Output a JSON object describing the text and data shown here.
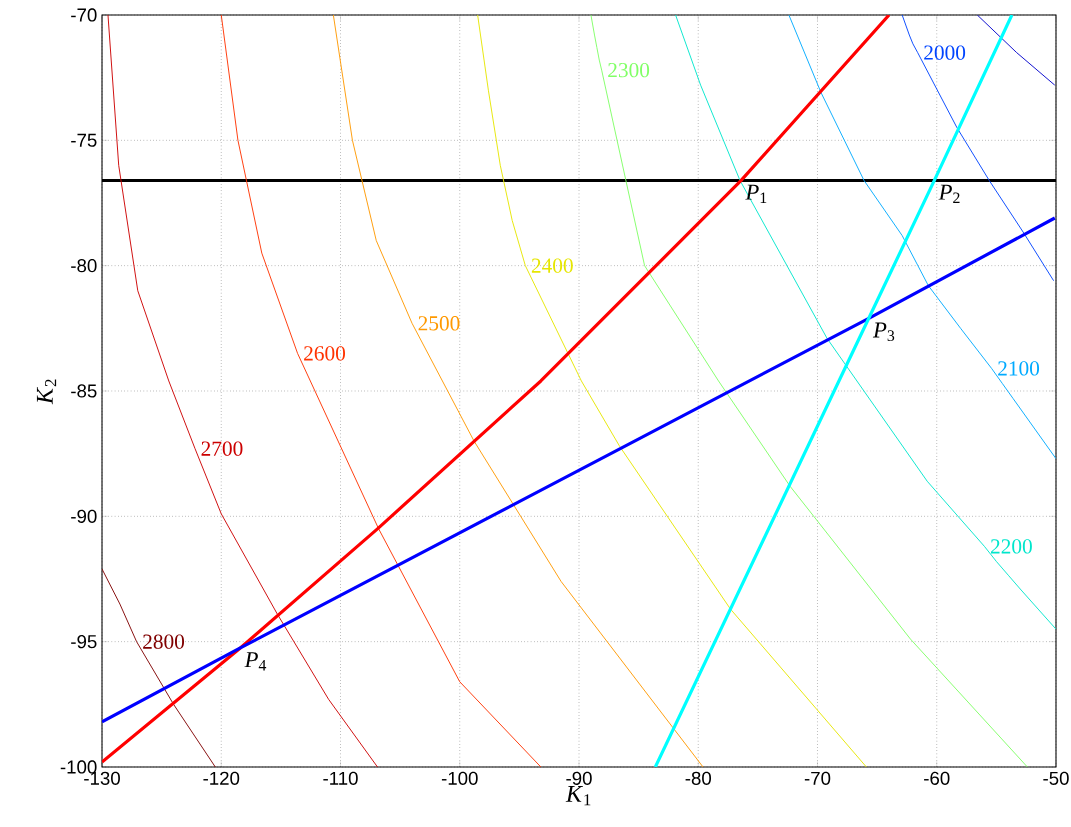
{
  "chart_data": {
    "type": "line",
    "xlabel": "*K*$_{1}$",
    "ylabel": "*K*$_{2}$",
    "xlim": [
      -130,
      -50
    ],
    "ylim": [
      -100,
      -70
    ],
    "xticks": [
      -130,
      -120,
      -110,
      -100,
      -90,
      -80,
      -70,
      -60,
      -50
    ],
    "yticks": [
      -100,
      -95,
      -90,
      -85,
      -80,
      -75,
      -70
    ],
    "grid": true,
    "series": [
      {
        "name": "2800",
        "color": "#800000",
        "x": [
          -130,
          -128.5,
          -127.1,
          -124,
          -120.5
        ],
        "values": [
          -92.1,
          -93.5,
          -95,
          -97.5,
          -100
        ]
      },
      {
        "name": "2700",
        "color": "#cc0000",
        "x": [
          -129.5,
          -128.6,
          -127,
          -124.4,
          -122.2,
          -120,
          -115.3,
          -111,
          -106.9
        ],
        "values": [
          -70,
          -76,
          -81,
          -84.6,
          -87.3,
          -89.9,
          -93.9,
          -97.3,
          -100
        ]
      },
      {
        "name": "2600",
        "color": "#ff3300",
        "x": [
          -120,
          -118.6,
          -116.6,
          -113.6,
          -106.8,
          -100,
          -93.2
        ],
        "values": [
          -70,
          -75,
          -79.5,
          -83.5,
          -90.5,
          -96.6,
          -100
        ]
      },
      {
        "name": "2500",
        "color": "#ff9900",
        "x": [
          -110.6,
          -109,
          -107,
          -104,
          -98.8,
          -91.5,
          -79.6
        ],
        "values": [
          -70,
          -75,
          -79,
          -82.3,
          -87,
          -92.6,
          -100
        ]
      },
      {
        "name": "2400",
        "color": "#e6e600",
        "x": [
          -98.5,
          -97.6,
          -96.6,
          -95.6,
          -94.5,
          -89.8,
          -86.6,
          -77.3,
          -65.9
        ],
        "values": [
          -70,
          -73,
          -76,
          -78.2,
          -80,
          -84.6,
          -87.2,
          -93.7,
          -100
        ]
      },
      {
        "name": "2300",
        "color": "#80ff66",
        "x": [
          -89,
          -88.85,
          -88.7,
          -88.5,
          -88.3,
          -88.1,
          -84.5,
          -78.3,
          -72.3,
          -62.2,
          -52.4
        ],
        "values": [
          -70,
          -70.4,
          -70.8,
          -71.3,
          -71.8,
          -72.2,
          -80,
          -84.6,
          -88.8,
          -94.9,
          -100
        ]
      },
      {
        "name": "2200",
        "color": "#00e6cc",
        "x": [
          -81.9,
          -79.8,
          -76.5,
          -69.2,
          -60.8,
          -56,
          -55,
          -54,
          -53,
          -51.5,
          -50
        ],
        "values": [
          -70,
          -72.8,
          -76.6,
          -82.9,
          -88.6,
          -91.2,
          -91.8,
          -92.35,
          -92.9,
          -93.7,
          -94.5
        ]
      },
      {
        "name": "2100",
        "color": "#00aaff",
        "x": [
          -72.4,
          -69.7,
          -66.1,
          -62.9,
          -60.7,
          -58,
          -55.4,
          -54.5,
          -53.6,
          -52.7,
          -51.8,
          -50.9,
          -50
        ],
        "values": [
          -70,
          -73.1,
          -76.6,
          -78.8,
          -80.8,
          -82.5,
          -84.1,
          -84.7,
          -85.3,
          -85.9,
          -86.5,
          -87.1,
          -87.7
        ]
      },
      {
        "name": "2000",
        "color": "#0044ff",
        "x": [
          -62.9,
          -62.6,
          -62.3,
          -62,
          -61.6,
          -58.3,
          -55.6,
          -52.7,
          -50.2
        ],
        "values": [
          -70,
          -70.4,
          -70.8,
          -71.15,
          -71.5,
          -74.5,
          -76.6,
          -78.7,
          -80.6
        ]
      },
      {
        "color": "#0000cc",
        "x": [
          -56.6,
          -53.3,
          -50.1
        ],
        "values": [
          -70,
          -71.5,
          -72.8
        ]
      },
      {
        "color": "#ff0000",
        "x": [
          -130,
          -118.4,
          -106.9,
          -93.2,
          -76.4,
          -64
        ],
        "values": [
          -99.8,
          -95.25,
          -90.5,
          -84.6,
          -76.6,
          -70
        ]
      },
      {
        "color": "#0000ff",
        "x": [
          -130,
          -118.4,
          -65.7,
          -50.1
        ],
        "values": [
          -98.2,
          -95.25,
          -82.1,
          -78.1
        ]
      },
      {
        "color": "#00ffff",
        "x": [
          -83.6,
          -65.7,
          -60.2,
          -53.7
        ],
        "values": [
          -100,
          -82.1,
          -76.6,
          -70
        ]
      }
    ],
    "ref_lines": [
      {
        "axis": "y",
        "value": -76.6,
        "color": "#000000"
      }
    ],
    "annotations": [
      {
        "text": "*P*$_{1}$",
        "x": -76.4,
        "y": -76.6
      },
      {
        "text": "*P*$_{2}$",
        "x": -60.2,
        "y": -76.6
      },
      {
        "text": "*P*$_{3}$",
        "x": -65.7,
        "y": -82.1
      },
      {
        "text": "*P*$_{4}$",
        "x": -118.4,
        "y": -95.25
      }
    ]
  }
}
